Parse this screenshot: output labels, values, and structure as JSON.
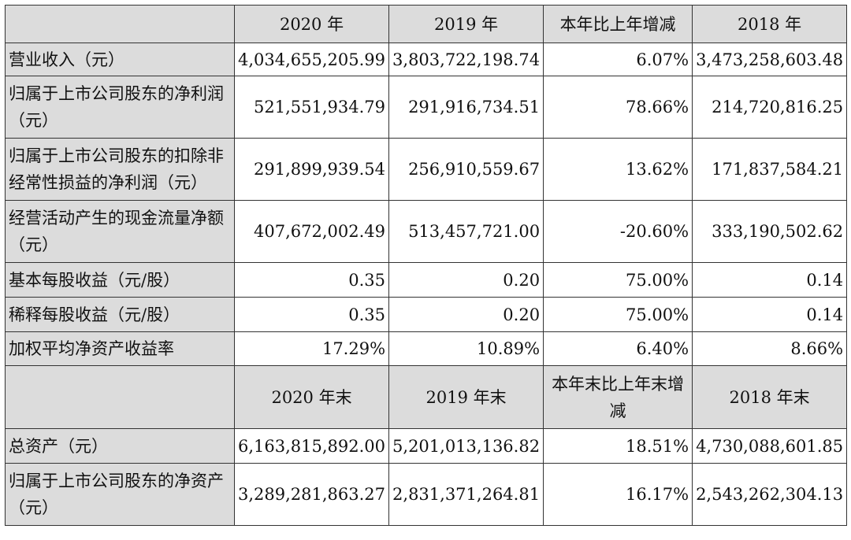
{
  "header1": {
    "cols": [
      "2020 年",
      "2019 年",
      "本年比上年增减",
      "2018 年"
    ]
  },
  "rows1": [
    {
      "label": "营业收入（元）",
      "v2020": "4,034,655,205.99",
      "v2019": "3,803,722,198.74",
      "change": "6.07%",
      "v2018": "3,473,258,603.48"
    },
    {
      "label": "归属于上市公司股东的净利润（元）",
      "v2020": "521,551,934.79",
      "v2019": "291,916,734.51",
      "change": "78.66%",
      "v2018": "214,720,816.25"
    },
    {
      "label": "归属于上市公司股东的扣除非经常性损益的净利润（元）",
      "v2020": "291,899,939.54",
      "v2019": "256,910,559.67",
      "change": "13.62%",
      "v2018": "171,837,584.21"
    },
    {
      "label": "经营活动产生的现金流量净额（元）",
      "v2020": "407,672,002.49",
      "v2019": "513,457,721.00",
      "change": "-20.60%",
      "v2018": "333,190,502.62"
    },
    {
      "label": "基本每股收益（元/股）",
      "v2020": "0.35",
      "v2019": "0.20",
      "change": "75.00%",
      "v2018": "0.14"
    },
    {
      "label": "稀释每股收益（元/股）",
      "v2020": "0.35",
      "v2019": "0.20",
      "change": "75.00%",
      "v2018": "0.14"
    },
    {
      "label": "加权平均净资产收益率",
      "v2020": "17.29%",
      "v2019": "10.89%",
      "change": "6.40%",
      "v2018": "8.66%"
    }
  ],
  "header2": {
    "cols": [
      "2020 年末",
      "2019 年末",
      "本年末比上年末增减",
      "2018 年末"
    ]
  },
  "rows2": [
    {
      "label": "总资产（元）",
      "v2020": "6,163,815,892.00",
      "v2019": "5,201,013,136.82",
      "change": "18.51%",
      "v2018": "4,730,088,601.85"
    },
    {
      "label": "归属于上市公司股东的净资产（元）",
      "v2020": "3,289,281,863.27",
      "v2019": "2,831,371,264.81",
      "change": "16.17%",
      "v2018": "2,543,262,304.13"
    }
  ]
}
